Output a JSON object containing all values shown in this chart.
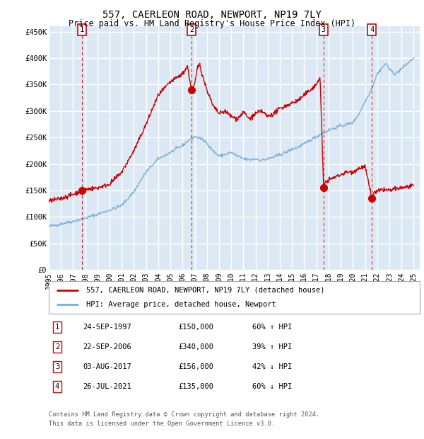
{
  "title": "557, CAERLEON ROAD, NEWPORT, NP19 7LY",
  "subtitle": "Price paid vs. HM Land Registry's House Price Index (HPI)",
  "ylabel_ticks": [
    "£0",
    "£50K",
    "£100K",
    "£150K",
    "£200K",
    "£250K",
    "£300K",
    "£350K",
    "£400K",
    "£450K"
  ],
  "ytick_vals": [
    0,
    50000,
    100000,
    150000,
    200000,
    250000,
    300000,
    350000,
    400000,
    450000
  ],
  "ylim": [
    0,
    460000
  ],
  "xlim_start": 1995.0,
  "xlim_end": 2025.5,
  "plot_bg_color": "#dce9f5",
  "grid_color": "#ffffff",
  "hpi_line_color": "#7ab0d8",
  "price_line_color": "#cc0000",
  "marker_color": "#cc0000",
  "dashed_line_color": "#cc0000",
  "label_box_color": "#cc0000",
  "transactions": [
    {
      "num": 1,
      "date": "24-SEP-1997",
      "price": 150000,
      "year": 1997.73,
      "pct": "60% ↑ HPI"
    },
    {
      "num": 2,
      "date": "22-SEP-2006",
      "price": 340000,
      "year": 2006.73,
      "pct": "39% ↑ HPI"
    },
    {
      "num": 3,
      "date": "03-AUG-2017",
      "price": 156000,
      "year": 2017.59,
      "pct": "42% ↓ HPI"
    },
    {
      "num": 4,
      "date": "26-JUL-2021",
      "price": 135000,
      "year": 2021.57,
      "pct": "60% ↓ HPI"
    }
  ],
  "legend_line1": "557, CAERLEON ROAD, NEWPORT, NP19 7LY (detached house)",
  "legend_line2": "HPI: Average price, detached house, Newport",
  "footer1": "Contains HM Land Registry data © Crown copyright and database right 2024.",
  "footer2": "This data is licensed under the Open Government Licence v3.0.",
  "xtick_years": [
    1995,
    1996,
    1997,
    1998,
    1999,
    2000,
    2001,
    2002,
    2003,
    2004,
    2005,
    2006,
    2007,
    2008,
    2009,
    2010,
    2011,
    2012,
    2013,
    2014,
    2015,
    2016,
    2017,
    2018,
    2019,
    2020,
    2021,
    2022,
    2023,
    2024,
    2025
  ]
}
